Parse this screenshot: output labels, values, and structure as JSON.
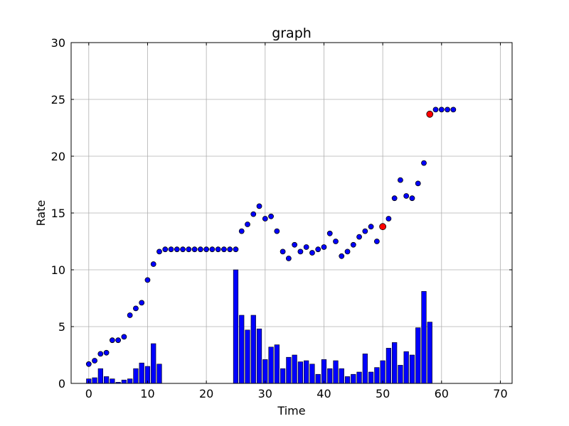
{
  "chart_data": {
    "type": "bar+scatter",
    "title": "graph",
    "xlabel": "Time",
    "ylabel": "Rate",
    "xlim": [
      -3,
      72
    ],
    "ylim": [
      0,
      30
    ],
    "xticks": [
      0,
      10,
      20,
      30,
      40,
      50,
      60,
      70
    ],
    "yticks": [
      0,
      5,
      10,
      15,
      20,
      25,
      30
    ],
    "grid": true,
    "colors": {
      "bars": "#0000ff",
      "points": "#0000ff",
      "highlight": "#ff0000",
      "edge": "#000000",
      "grid": "#b0b0b0"
    },
    "bars": {
      "x": [
        0,
        1,
        2,
        3,
        4,
        5,
        6,
        7,
        8,
        9,
        10,
        11,
        12,
        13,
        14,
        15,
        16,
        17,
        18,
        19,
        20,
        21,
        22,
        23,
        24,
        25,
        26,
        27,
        28,
        29,
        30,
        31,
        32,
        33,
        34,
        35,
        36,
        37,
        38,
        39,
        40,
        41,
        42,
        43,
        44,
        45,
        46,
        47,
        48,
        49,
        50,
        51,
        52,
        53,
        54,
        55,
        56,
        57,
        58
      ],
      "values": [
        0.4,
        0.5,
        1.3,
        0.6,
        0.4,
        0.1,
        0.3,
        0.4,
        1.3,
        1.8,
        1.5,
        3.5,
        1.7,
        0,
        0,
        0,
        0,
        0,
        0,
        0,
        0,
        0,
        0,
        0,
        0,
        10.0,
        6.0,
        4.7,
        6.0,
        4.8,
        2.1,
        3.2,
        3.4,
        1.3,
        2.3,
        2.5,
        1.9,
        2.0,
        1.7,
        0.8,
        2.1,
        1.3,
        2.0,
        1.3,
        0.6,
        0.8,
        1.0,
        2.6,
        1.0,
        1.4,
        2.0,
        3.1,
        3.6,
        1.6,
        2.8,
        2.5,
        4.9,
        8.1,
        5.4
      ]
    },
    "points": {
      "x": [
        0,
        1,
        2,
        3,
        4,
        5,
        6,
        7,
        8,
        9,
        10,
        11,
        12,
        13,
        14,
        15,
        16,
        17,
        18,
        19,
        20,
        21,
        22,
        23,
        24,
        25,
        26,
        27,
        28,
        29,
        30,
        31,
        32,
        33,
        34,
        35,
        36,
        37,
        38,
        39,
        40,
        41,
        42,
        43,
        44,
        45,
        46,
        47,
        48,
        49,
        50,
        51,
        52,
        53,
        54,
        55,
        56,
        57,
        58,
        59,
        60,
        61,
        62
      ],
      "y": [
        1.7,
        2.0,
        2.6,
        2.7,
        3.8,
        3.8,
        4.1,
        6.0,
        6.6,
        7.1,
        9.1,
        10.5,
        11.6,
        11.8,
        11.8,
        11.8,
        11.8,
        11.8,
        11.8,
        11.8,
        11.8,
        11.8,
        11.8,
        11.8,
        11.8,
        11.8,
        13.4,
        14.0,
        14.9,
        15.6,
        14.5,
        14.7,
        13.4,
        11.6,
        11.0,
        12.2,
        11.6,
        12.0,
        11.5,
        11.8,
        12.0,
        13.2,
        12.5,
        11.2,
        11.6,
        12.2,
        12.9,
        13.4,
        13.8,
        12.5,
        13.8,
        14.5,
        16.3,
        17.9,
        16.5,
        16.3,
        17.6,
        19.4,
        23.7,
        24.1,
        24.1,
        24.1,
        24.1
      ],
      "highlighted_x": [
        50,
        58
      ]
    }
  }
}
